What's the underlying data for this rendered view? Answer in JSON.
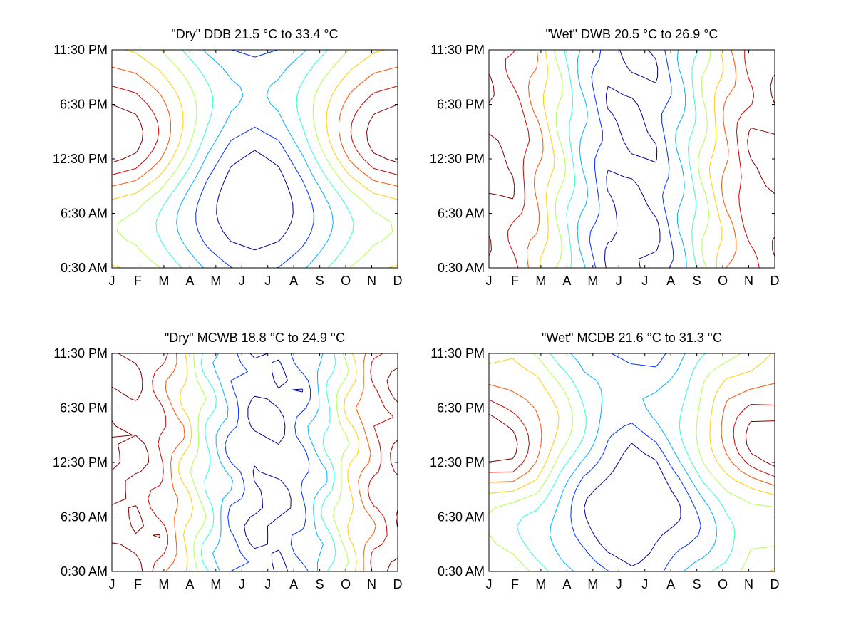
{
  "chart_data": [
    {
      "type": "contour",
      "title": "\"Dry\" DDB  21.5 °C to  33.4 °C",
      "x_ticks": [
        "J",
        "F",
        "M",
        "A",
        "M",
        "J",
        "J",
        "A",
        "S",
        "O",
        "N",
        "D"
      ],
      "y_ticks": [
        "0:30 AM",
        "6:30 AM",
        "12:30 PM",
        "6:30 PM",
        "11:30 PM"
      ],
      "value_range": [
        21.5,
        33.4
      ],
      "pattern": "hourly × monthly temperature contours; hottest in the afternoon of winter months, coolest at night in July"
    },
    {
      "type": "contour",
      "title": "\"Wet\" DWB  20.5 °C to  26.9 °C",
      "x_ticks": [
        "J",
        "F",
        "M",
        "A",
        "M",
        "J",
        "J",
        "A",
        "S",
        "O",
        "N",
        "D"
      ],
      "y_ticks": [
        "0:30 AM",
        "6:30 AM",
        "12:30 PM",
        "6:30 PM",
        "11:30 PM"
      ],
      "value_range": [
        20.5,
        26.9
      ],
      "pattern": "mostly vertical contours (depends on month), highest in winter months, lowest in July"
    },
    {
      "type": "contour",
      "title": "\"Dry\" MCWB  18.8 °C to  24.9 °C",
      "x_ticks": [
        "J",
        "F",
        "M",
        "A",
        "M",
        "J",
        "J",
        "A",
        "S",
        "O",
        "N",
        "D"
      ],
      "y_ticks": [
        "0:30 AM",
        "6:30 AM",
        "12:30 PM",
        "6:30 PM",
        "11:30 PM"
      ],
      "value_range": [
        18.8,
        24.9
      ],
      "pattern": "mostly vertical contours, highest in winter months, lowest mid-year"
    },
    {
      "type": "contour",
      "title": "\"Wet\" MCDB  21.6 °C to  31.3 °C",
      "x_ticks": [
        "J",
        "F",
        "M",
        "A",
        "M",
        "J",
        "J",
        "A",
        "S",
        "O",
        "N",
        "D"
      ],
      "y_ticks": [
        "0:30 AM",
        "6:30 AM",
        "12:30 PM",
        "6:30 PM",
        "11:30 PM"
      ],
      "value_range": [
        21.6,
        31.3
      ],
      "pattern": "saddle pattern like DDB: afternoon maximum in winter months, night minimum in July"
    }
  ],
  "colors": [
    "#00008f",
    "#0030ff",
    "#00b0ff",
    "#30ffcf",
    "#afff50",
    "#ffcf00",
    "#ff5000",
    "#cf0000",
    "#800000"
  ]
}
